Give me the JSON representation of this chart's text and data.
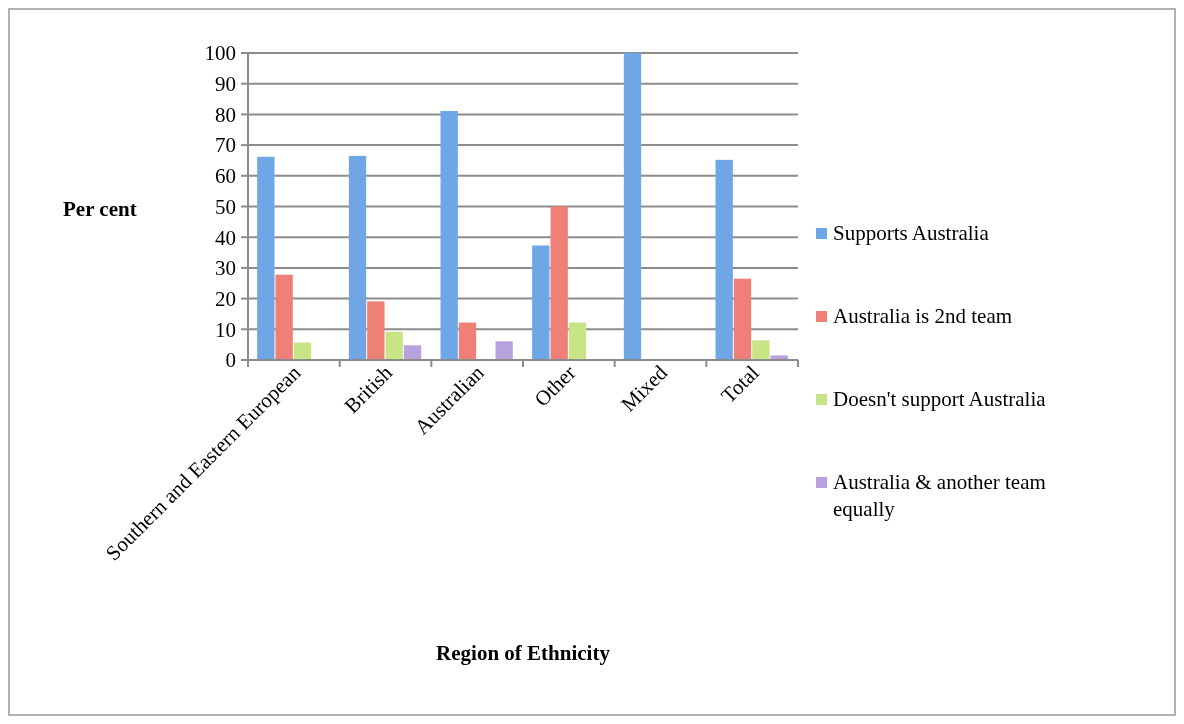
{
  "chart_data": {
    "type": "bar",
    "xlabel": "Region of Ethnicity",
    "ylabel": "Per cent",
    "categories": [
      "Southern and Eastern European",
      "British",
      "Australian",
      "Other",
      "Mixed",
      "Total"
    ],
    "series": [
      {
        "name": "Supports Australia",
        "color": "#6fa6e6",
        "values": [
          66.2,
          66.5,
          81.1,
          37.3,
          100,
          65.2
        ]
      },
      {
        "name": "Australia is 2nd team",
        "color": "#ee8078",
        "values": [
          27.8,
          19.1,
          12.2,
          50,
          0,
          26.5
        ]
      },
      {
        "name": "Doesn't support Australia",
        "color": "#c8e585",
        "values": [
          5.7,
          9.2,
          0,
          12.2,
          0,
          6.4
        ]
      },
      {
        "name": "Australia & another team equally",
        "color": "#b7a2de",
        "values": [
          0,
          4.8,
          6.1,
          0,
          0,
          1.5
        ]
      }
    ],
    "ylim": [
      0,
      100
    ],
    "yticks": [
      0,
      10,
      20,
      30,
      40,
      50,
      60,
      70,
      80,
      90,
      100
    ],
    "grid": "y",
    "legend": "right"
  }
}
